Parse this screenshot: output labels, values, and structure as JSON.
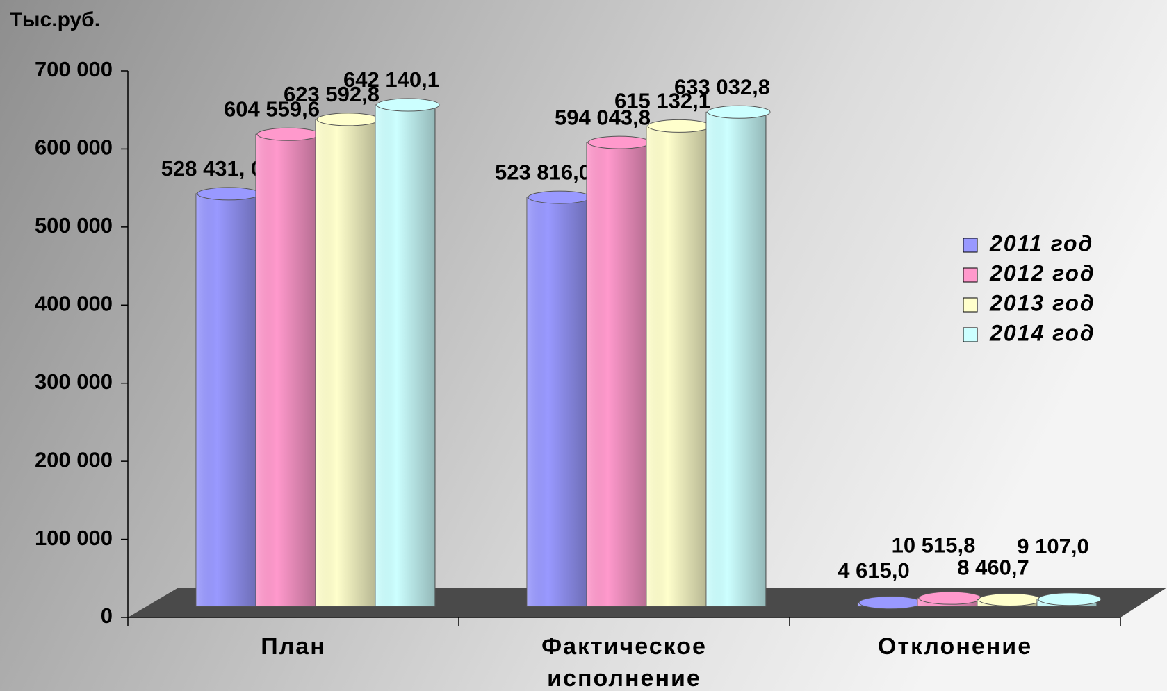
{
  "chart_data": {
    "type": "bar",
    "y_label": "Тыс.руб.",
    "categories": [
      "План",
      "Фактическое исполнение",
      "Отклонение"
    ],
    "series": [
      {
        "name": "2011 год",
        "color": "#9999ff",
        "values": [
          528431.0,
          523816.0,
          4615.0
        ],
        "value_labels": [
          "528 431, 0",
          "523 816,0",
          "4 615,0"
        ]
      },
      {
        "name": "2012 год",
        "color": "#ff99cc",
        "values": [
          604559.6,
          594043.8,
          10515.8
        ],
        "value_labels": [
          "604 559,6",
          "594 043,8",
          "10 515,8"
        ]
      },
      {
        "name": "2013 год",
        "color": "#ffffcc",
        "values": [
          623592.8,
          615132.1,
          8460.7
        ],
        "value_labels": [
          "623 592,8",
          "615 132,1",
          "8 460,7"
        ]
      },
      {
        "name": "2014 год",
        "color": "#ccffff",
        "values": [
          642140.1,
          633032.8,
          9107.0
        ],
        "value_labels": [
          "642 140,1",
          "633 032,8",
          "9 107,0"
        ]
      }
    ],
    "ylim": [
      0,
      700000
    ],
    "yticks": [
      {
        "value": 0,
        "label": "0"
      },
      {
        "value": 100000,
        "label": "100 000"
      },
      {
        "value": 200000,
        "label": "200 000"
      },
      {
        "value": 300000,
        "label": "300 000"
      },
      {
        "value": 400000,
        "label": "400 000"
      },
      {
        "value": 500000,
        "label": "500 000"
      },
      {
        "value": 600000,
        "label": "600 000"
      },
      {
        "value": 700000,
        "label": "700 000"
      }
    ],
    "legend": "right"
  }
}
